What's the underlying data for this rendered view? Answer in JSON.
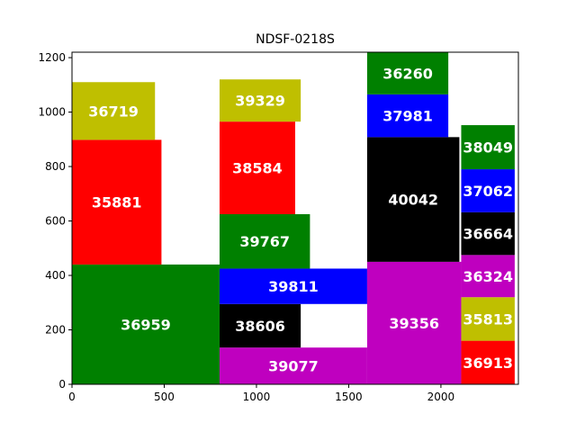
{
  "chart_data": {
    "type": "treemap",
    "title": "NDSF-0218S",
    "xlim": [
      0,
      2420
    ],
    "ylim": [
      0,
      1220
    ],
    "xticks": [
      0,
      500,
      1000,
      1500,
      2000
    ],
    "yticks": [
      0,
      200,
      400,
      600,
      800,
      1000,
      1200
    ],
    "rects": [
      {
        "label": "36959",
        "x0": 0,
        "x1": 800,
        "y0": 0,
        "y1": 440,
        "color": "#008000"
      },
      {
        "label": "35881",
        "x0": 0,
        "x1": 485,
        "y0": 440,
        "y1": 898,
        "color": "#ff0000"
      },
      {
        "label": "36719",
        "x0": 0,
        "x1": 450,
        "y0": 898,
        "y1": 1110,
        "color": "#bfbf00"
      },
      {
        "label": "39077",
        "x0": 800,
        "x1": 1600,
        "y0": 0,
        "y1": 135,
        "color": "#bf00bf"
      },
      {
        "label": "38606",
        "x0": 800,
        "x1": 1240,
        "y0": 135,
        "y1": 295,
        "color": "#000000"
      },
      {
        "label": "39811",
        "x0": 800,
        "x1": 1600,
        "y0": 295,
        "y1": 425,
        "color": "#0000ff"
      },
      {
        "label": "39767",
        "x0": 800,
        "x1": 1290,
        "y0": 425,
        "y1": 625,
        "color": "#008000"
      },
      {
        "label": "38584",
        "x0": 800,
        "x1": 1210,
        "y0": 625,
        "y1": 965,
        "color": "#ff0000"
      },
      {
        "label": "39329",
        "x0": 800,
        "x1": 1240,
        "y0": 965,
        "y1": 1120,
        "color": "#bfbf00"
      },
      {
        "label": "39356",
        "x0": 1600,
        "x1": 2110,
        "y0": 0,
        "y1": 450,
        "color": "#bf00bf"
      },
      {
        "label": "40042",
        "x0": 1600,
        "x1": 2100,
        "y0": 450,
        "y1": 908,
        "color": "#000000"
      },
      {
        "label": "37981",
        "x0": 1600,
        "x1": 2040,
        "y0": 908,
        "y1": 1065,
        "color": "#0000ff"
      },
      {
        "label": "36260",
        "x0": 1600,
        "x1": 2040,
        "y0": 1065,
        "y1": 1220,
        "color": "#008000"
      },
      {
        "label": "36913",
        "x0": 2110,
        "x1": 2400,
        "y0": 0,
        "y1": 160,
        "color": "#ff0000"
      },
      {
        "label": "35813",
        "x0": 2110,
        "x1": 2400,
        "y0": 160,
        "y1": 320,
        "color": "#bfbf00"
      },
      {
        "label": "36324",
        "x0": 2110,
        "x1": 2400,
        "y0": 320,
        "y1": 475,
        "color": "#bf00bf"
      },
      {
        "label": "36664",
        "x0": 2110,
        "x1": 2400,
        "y0": 475,
        "y1": 632,
        "color": "#000000"
      },
      {
        "label": "37062",
        "x0": 2110,
        "x1": 2400,
        "y0": 632,
        "y1": 790,
        "color": "#0000ff"
      },
      {
        "label": "38049",
        "x0": 2110,
        "x1": 2400,
        "y0": 790,
        "y1": 952,
        "color": "#008000"
      }
    ]
  }
}
